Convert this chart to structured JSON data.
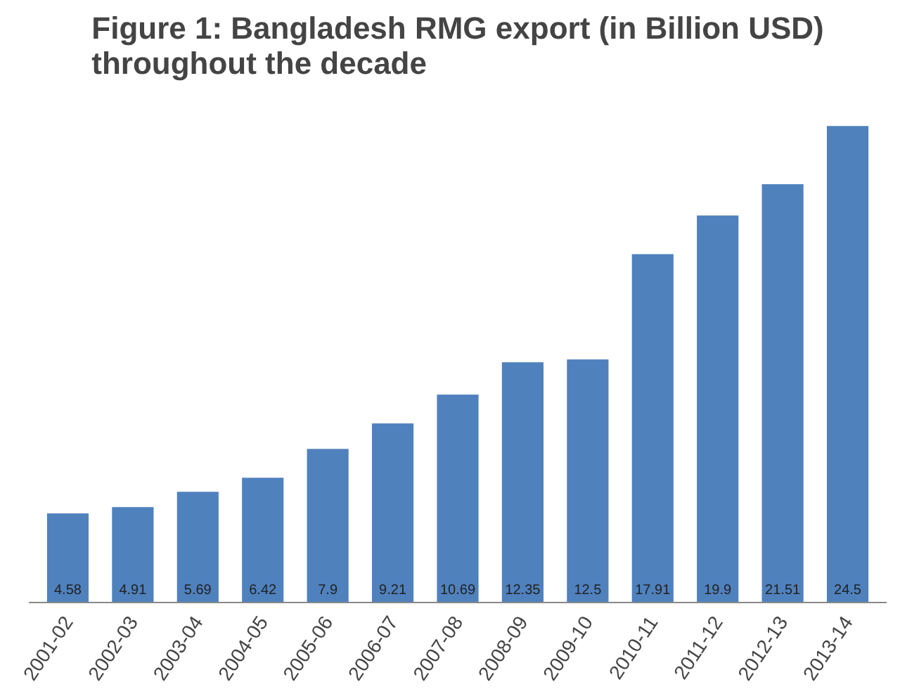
{
  "chart_data": {
    "type": "bar",
    "title": "Figure 1: Bangladesh RMG export (in Billion USD)\nthroughout the decade",
    "categories": [
      "2001-02",
      "2002-03",
      "2003-04",
      "2004-05",
      "2005-06",
      "2006-07",
      "2007-08",
      "2008-09",
      "2009-10",
      "2010-11",
      "2011-12",
      "2012-13",
      "2013-14"
    ],
    "values": [
      4.58,
      4.91,
      5.69,
      6.42,
      7.9,
      9.21,
      10.69,
      12.35,
      12.5,
      17.91,
      19.9,
      21.51,
      24.5
    ],
    "color": "#4f81bd",
    "data_labels": true,
    "grid": false
  }
}
